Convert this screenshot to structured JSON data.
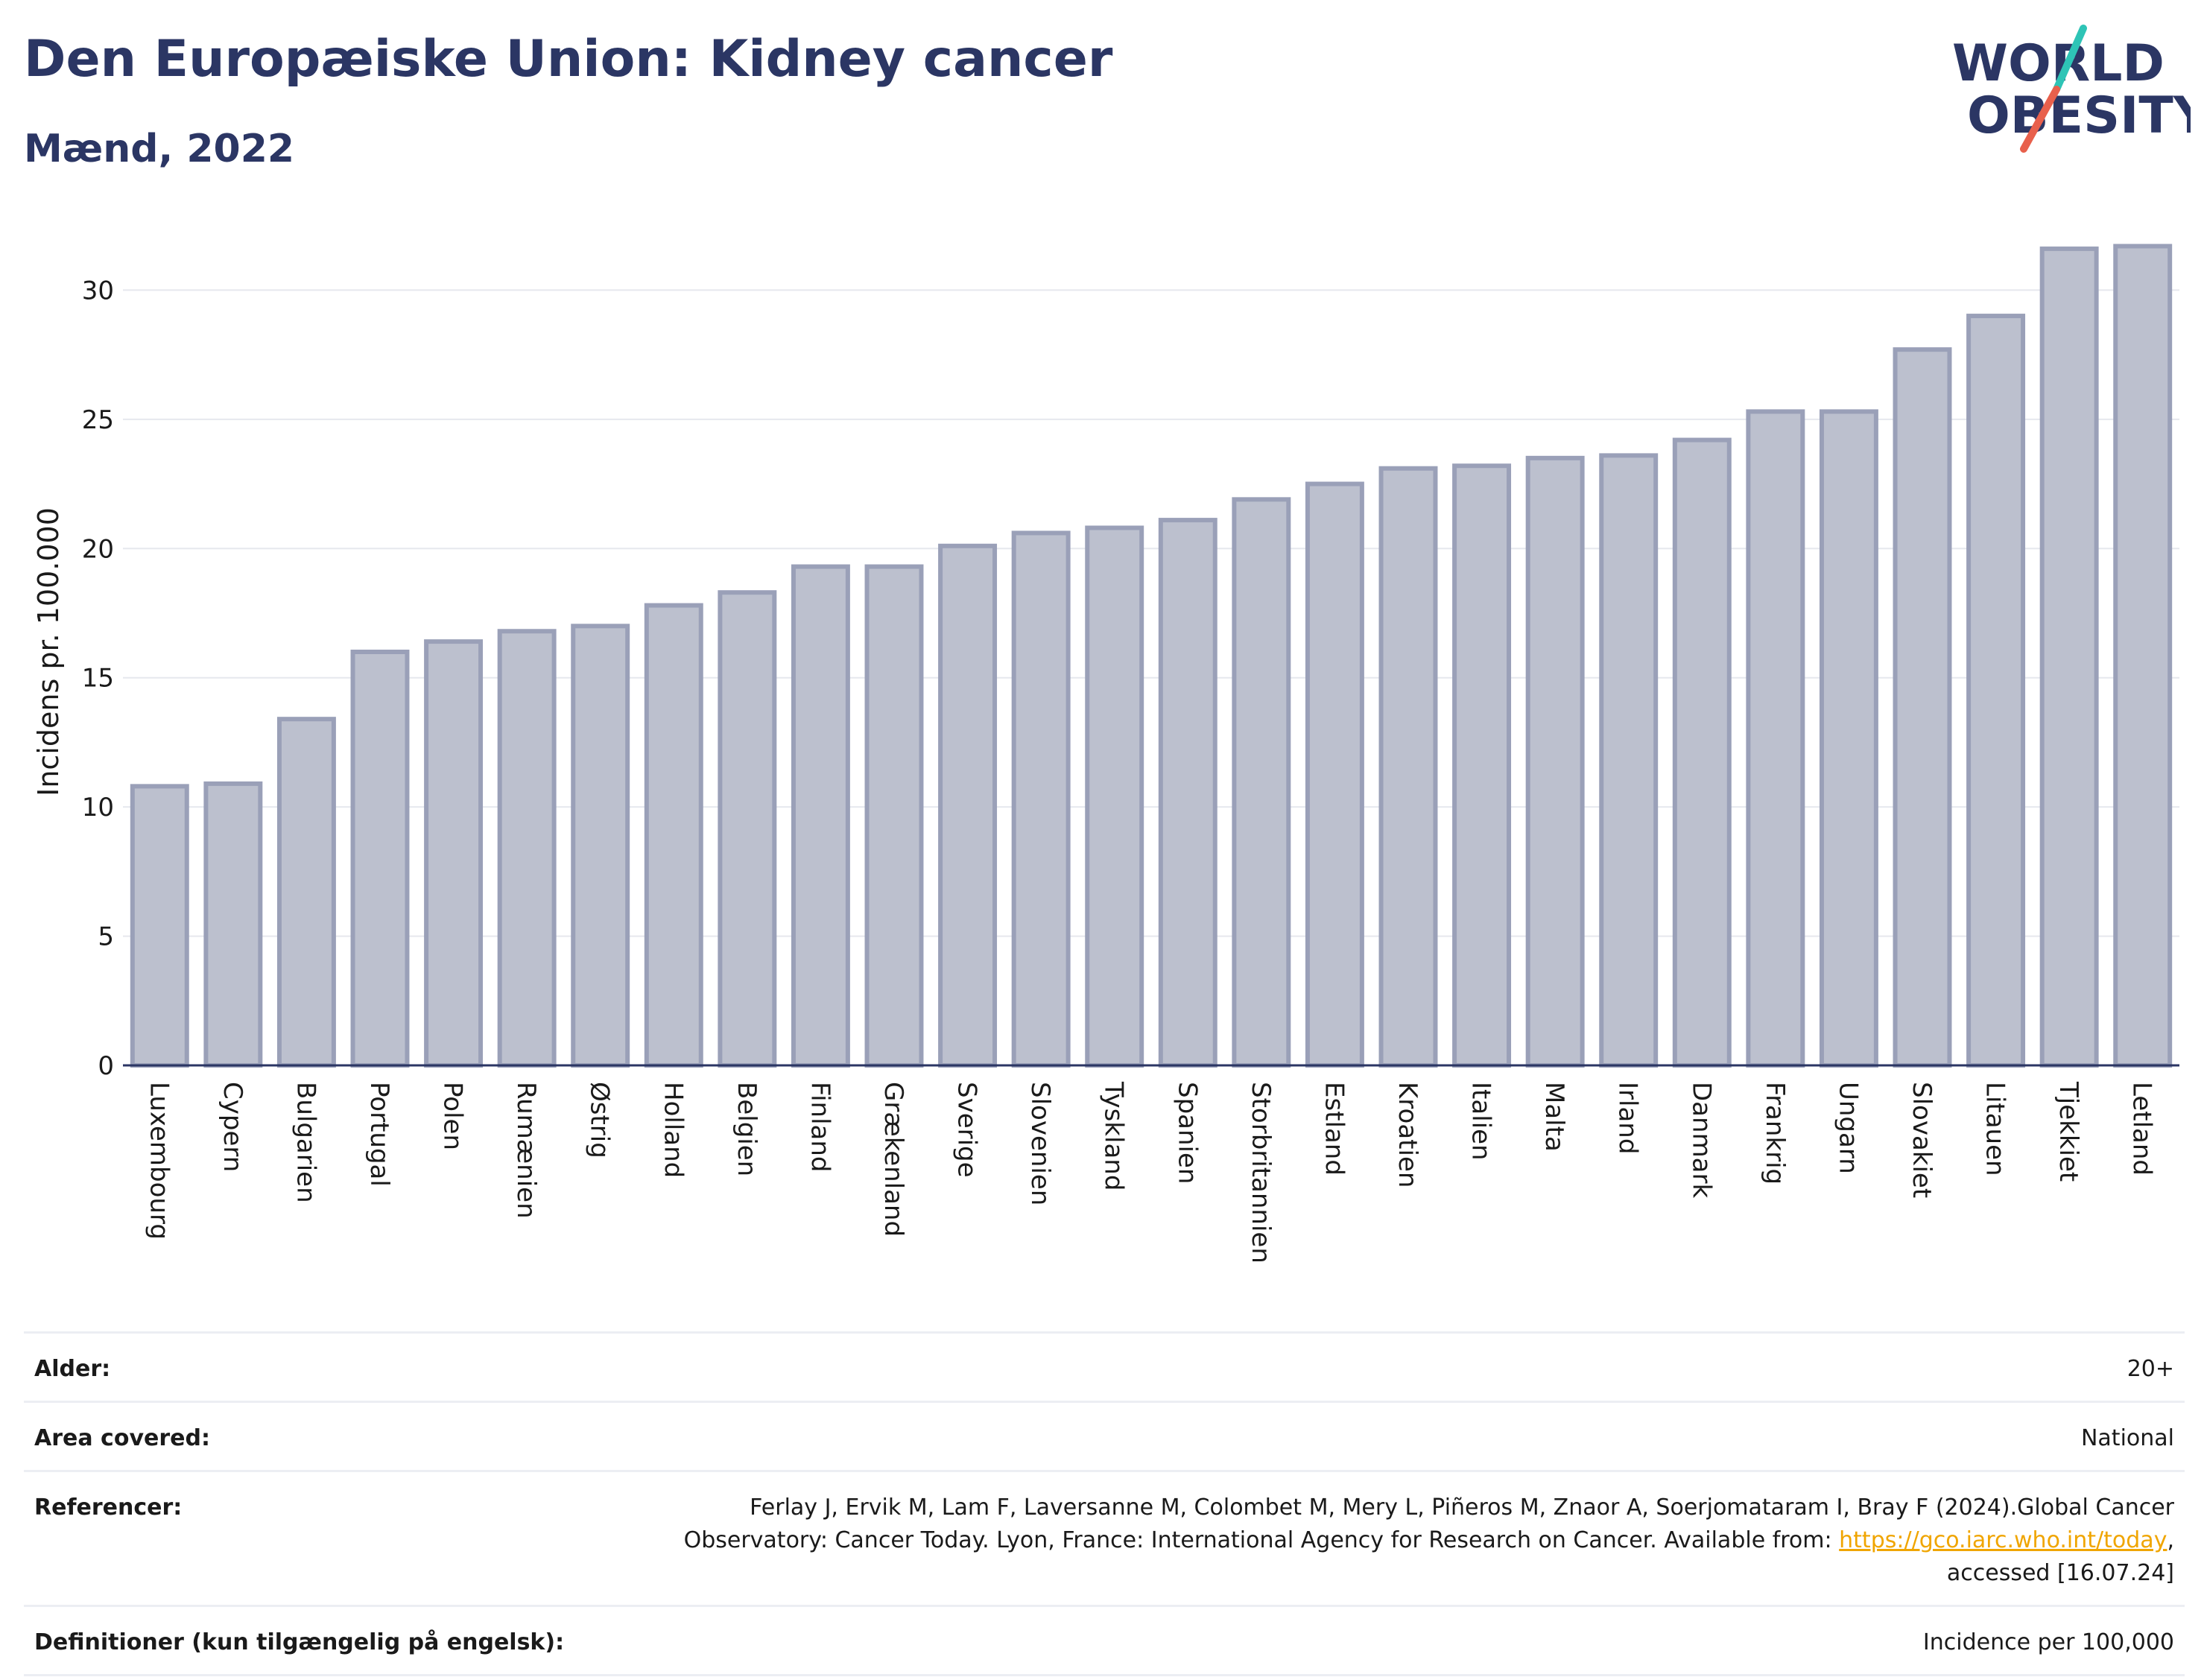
{
  "header": {
    "title": "Den Europæiske Union: Kidney cancer",
    "subtitle": "Mænd, 2022"
  },
  "logo": {
    "line1": "WORLD",
    "line2": "OBESITY",
    "text_color": "#2b3664",
    "slash_colors": [
      "#2ec4b6",
      "#e8604c"
    ]
  },
  "chart_data": {
    "type": "bar",
    "ylabel": "Incidens pr. 100.000",
    "ylim": [
      0,
      32
    ],
    "yticks": [
      0,
      5,
      10,
      15,
      20,
      25,
      30
    ],
    "grid": true,
    "bar_color": "#bcc0ce",
    "bar_edge_color": "#9aa0b8",
    "categories": [
      "Luxembourg",
      "Cypern",
      "Bulgarien",
      "Portugal",
      "Polen",
      "Rumænien",
      "Østrig",
      "Holland",
      "Belgien",
      "Finland",
      "Grækenland",
      "Sverige",
      "Slovenien",
      "Tyskland",
      "Spanien",
      "Storbritannien",
      "Estland",
      "Kroatien",
      "Italien",
      "Malta",
      "Irland",
      "Danmark",
      "Frankrig",
      "Ungarn",
      "Slovakiet",
      "Litauen",
      "Tjekkiet",
      "Letland"
    ],
    "values": [
      10.8,
      10.9,
      13.4,
      16.0,
      16.4,
      16.8,
      17.0,
      17.8,
      18.3,
      19.3,
      19.3,
      20.1,
      20.6,
      20.8,
      21.1,
      21.9,
      22.5,
      23.1,
      23.2,
      23.5,
      23.6,
      24.2,
      25.3,
      25.3,
      27.7,
      29.0,
      31.6,
      31.7
    ]
  },
  "meta": {
    "rows": [
      {
        "label": "Alder:",
        "value": "20+"
      },
      {
        "label": "Area covered:",
        "value": "National"
      },
      {
        "label": "Referencer:",
        "value_before": "Ferlay J, Ervik M, Lam F, Laversanne M, Colombet M, Mery L, Piñeros M, Znaor A, Soerjomataram I, Bray F (2024).Global Cancer Observatory: Cancer Today. Lyon, France: International Agency for Research on Cancer. Available from: ",
        "link": "https://gco.iarc.who.int/today",
        "value_after": ", accessed [16.07.24]"
      },
      {
        "label": "Definitioner (kun tilgængelig på engelsk):",
        "value": "Incidence per 100,000"
      }
    ]
  }
}
